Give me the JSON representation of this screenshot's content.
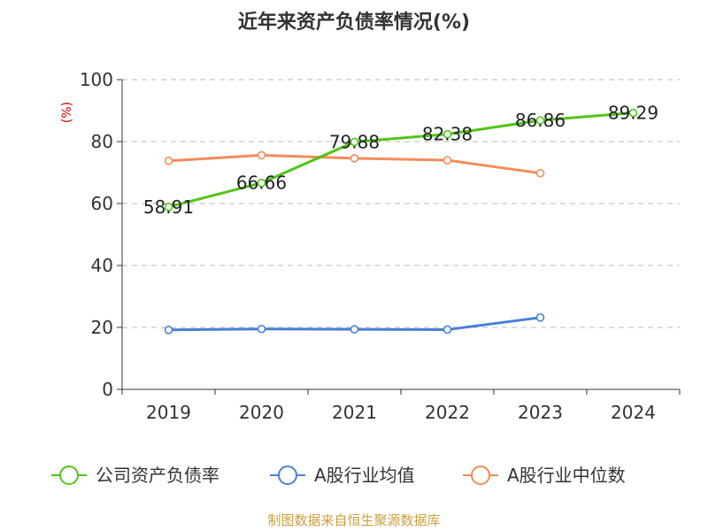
{
  "title": "近年来资产负债率情况(%)",
  "source": "制图数据来自恒生聚源数据库",
  "chart_data": {
    "type": "line",
    "title": "近年来资产负债率情况(%)",
    "ylabel": "(%)",
    "ylim": [
      0,
      100
    ],
    "yticks": [
      "0",
      "20",
      "40",
      "60",
      "80",
      "100"
    ],
    "grid": true,
    "legend_position": "bottom",
    "categories": [
      "2019",
      "2020",
      "2021",
      "2022",
      "2023",
      "2024"
    ],
    "series": [
      {
        "name": "公司资产负债率",
        "color": "#52c41a",
        "values": [
          58.91,
          66.66,
          79.88,
          82.38,
          86.86,
          89.29
        ],
        "labels": [
          "58.91",
          "66.66",
          "79.88",
          "82.38",
          "86.86",
          "89.29"
        ]
      },
      {
        "name": "A股行业均值",
        "color": "#4a7fd9",
        "values": [
          19.2,
          19.5,
          19.4,
          19.3,
          23.2,
          null
        ]
      },
      {
        "name": "A股行业中位数",
        "color": "#f28c5a",
        "values": [
          73.8,
          75.6,
          74.6,
          74.0,
          69.8,
          null
        ]
      }
    ]
  }
}
